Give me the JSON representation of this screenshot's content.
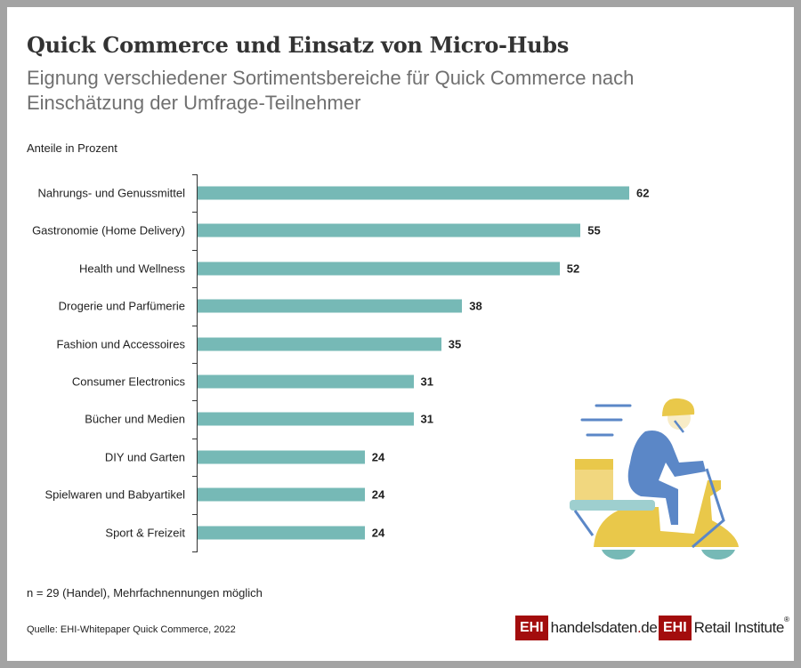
{
  "header": {
    "title": "Quick Commerce und Einsatz von Micro-Hubs",
    "subtitle": "Eignung verschiedener Sortimentsbereiche für Quick Commerce nach Einschätzung der Umfrage-Teilnehmer"
  },
  "chart_data": {
    "type": "bar",
    "orientation": "horizontal",
    "title": "Quick Commerce und Einsatz von Micro-Hubs",
    "ylabel": "Anteile in Prozent",
    "categories": [
      "Nahrungs- und Genussmittel",
      "Gastronomie (Home Delivery)",
      "Health und Wellness",
      "Drogerie und Parfümerie",
      "Fashion und Accessoires",
      "Consumer Electronics",
      "Bücher und Medien",
      "DIY und Garten",
      "Spielwaren und Babyartikel",
      "Sport & Freizeit"
    ],
    "values": [
      62,
      55,
      52,
      38,
      35,
      31,
      31,
      24,
      24,
      24
    ],
    "xlim": [
      0,
      62
    ],
    "bar_color": "#76b9b6",
    "grid": false
  },
  "footer": {
    "note": "n = 29 (Handel),  Mehrfachnennungen möglich",
    "source": "Quelle: EHI-Whitepaper Quick Commerce, 2022"
  },
  "logos": {
    "ehi": "EHI",
    "handelsdaten_main": "handelsdaten",
    "handelsdaten_dot": ".",
    "handelsdaten_tld": "de",
    "retail": "Retail Institute",
    "registered": "®"
  }
}
